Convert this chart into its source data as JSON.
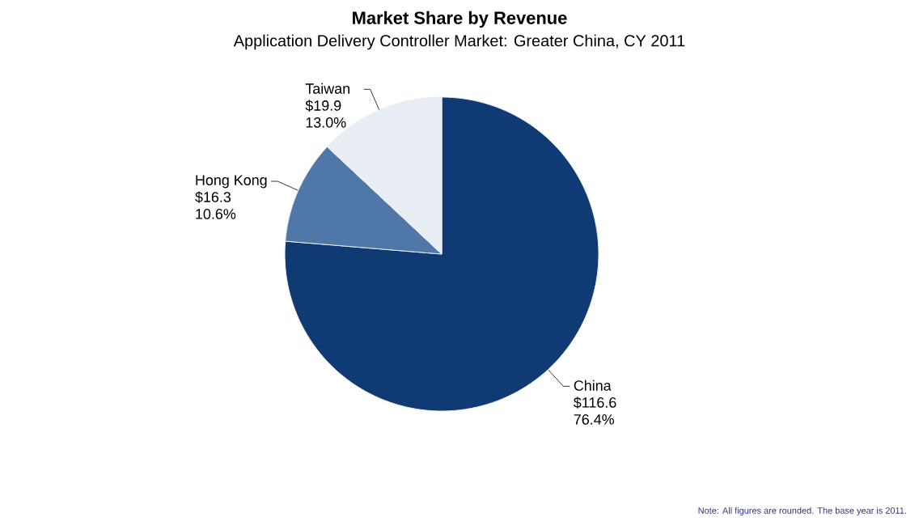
{
  "chart_data": {
    "type": "pie",
    "title": "Market Share by Revenue",
    "subtitle": "Application Delivery Controller Market: Greater China, CY 2011",
    "categories": [
      "China",
      "Hong Kong",
      "Taiwan"
    ],
    "values": [
      116.6,
      16.3,
      19.9
    ],
    "value_labels": [
      "$116.6 76.4%",
      "$16.3 10.6%",
      "$19.9 13.0%"
    ],
    "colors": [
      "#0f3a74",
      "#4f77a8",
      "#e9eef5"
    ],
    "annotations": [
      "Note: All figures are rounded. The base year is 2011."
    ]
  }
}
